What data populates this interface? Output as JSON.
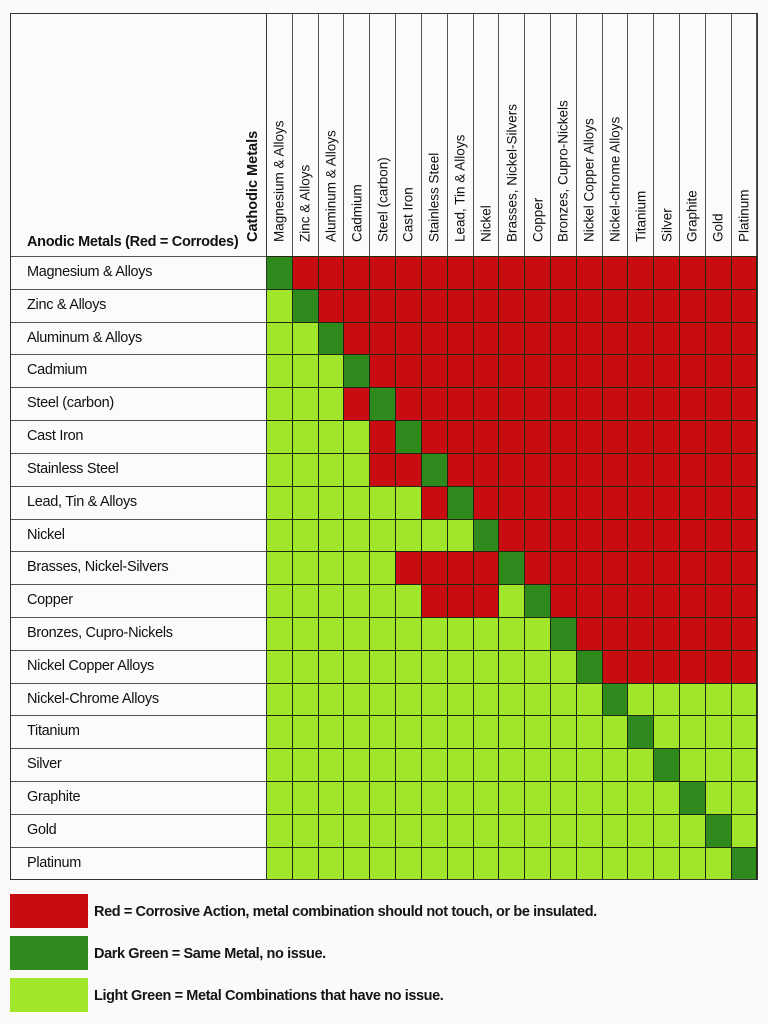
{
  "colors": {
    "red": "#c80c12",
    "dark_green": "#2e8a1c",
    "light_green": "#a0e62a"
  },
  "chart_data": {
    "type": "heatmap",
    "title": "",
    "row_axis_label": "Anodic Metals (Red = Corrodes)",
    "col_axis_label": "Cathodic Metals",
    "columns": [
      "Magnesium & Alloys",
      "Zinc & Alloys",
      "Aluminum & Alloys",
      "Cadmium",
      "Steel (carbon)",
      "Cast Iron",
      "Stainless Steel",
      "Lead, Tin & Alloys",
      "Nickel",
      "Brasses, Nickel-Silvers",
      "Copper",
      "Bronzes, Cupro-Nickels",
      "Nickel Copper Alloys",
      "Nickel-chrome Alloys",
      "Titanium",
      "Silver",
      "Graphite",
      "Gold",
      "Platinum"
    ],
    "rows": [
      "Magnesium & Alloys",
      "Zinc & Alloys",
      "Aluminum & Alloys",
      "Cadmium",
      "Steel (carbon)",
      "Cast Iron",
      "Stainless Steel",
      "Lead, Tin & Alloys",
      "Nickel",
      "Brasses, Nickel-Silvers",
      "Copper",
      "Bronzes, Cupro-Nickels",
      "Nickel Copper Alloys",
      "Nickel-Chrome Alloys",
      "Titanium",
      "Silver",
      "Graphite",
      "Gold",
      "Platinum"
    ],
    "value_legend": {
      "R": "Red = Corrosive Action",
      "D": "Dark Green = Same Metal",
      "L": "Light Green = No issue"
    },
    "matrix": [
      "DRRRRRRRRRRRRRRRRRR",
      "LDRRRRRRRRRRRRRRRRR",
      "LLDRRRRRRRRRRRRRRRR",
      "LLLDRRRRRRRRRRRRRRR",
      "LLLRDRRRRRRRRRRRRRR",
      "LLLLRDRRRRRRRRRRRRR",
      "LLLLRRDRRRRRRRRRRRR",
      "LLLLLLRDRRRRRRRRRRR",
      "LLLLLLLLDRRRRRRRRRR",
      "LLLLLRRRRDRRRRRRRRR",
      "LLLLLLRRRLDRRRRRRRR",
      "LLLLLLLLLLLDRRRRRRR",
      "LLLLLLLLLLLLDRRRRRR",
      "LLLLLLLLLLLLLDLLLLL",
      "LLLLLLLLLLLLLLDLLLL",
      "LLLLLLLLLLLLLLLDLLL",
      "LLLLLLLLLLLLLLLLDLL",
      "LLLLLLLLLLLLLLLLLDL",
      "LLLLLLLLLLLLLLLLLLD"
    ]
  },
  "legend": [
    {
      "color_key": "red",
      "text": "Red = Corrosive Action, metal combination should not touch, or be insulated."
    },
    {
      "color_key": "dark_green",
      "text": "Dark Green = Same Metal, no issue."
    },
    {
      "color_key": "light_green",
      "text": "Light Green = Metal Combinations that have no issue."
    }
  ]
}
